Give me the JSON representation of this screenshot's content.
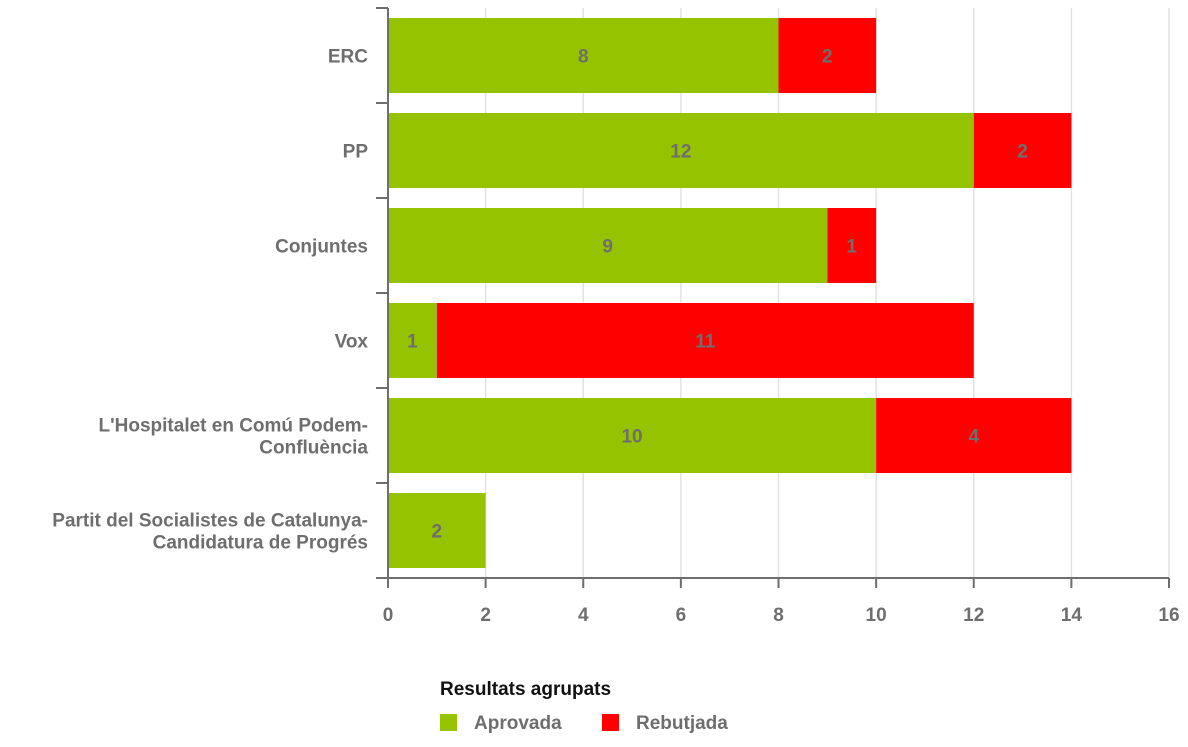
{
  "chart_data": {
    "type": "bar",
    "orientation": "horizontal",
    "stacked": true,
    "categories": [
      "ERC",
      "PP",
      "Conjuntes",
      "Vox",
      "L'Hospitalet en Comú Podem-Confluència",
      "Partit del Socialistes de Catalunya-Candidatura de Progrés"
    ],
    "series": [
      {
        "name": "Aprovada",
        "color": "#96c300",
        "values": [
          8,
          12,
          9,
          1,
          10,
          2
        ]
      },
      {
        "name": "Rebutjada",
        "color": "#ff0000",
        "values": [
          2,
          2,
          1,
          11,
          4,
          0
        ]
      }
    ],
    "xlim": [
      0,
      16
    ],
    "xticks": [
      0,
      2,
      4,
      6,
      8,
      10,
      12,
      14,
      16
    ],
    "grid": true,
    "legend": {
      "title": "Resultats agrupats",
      "position": "bottom"
    },
    "title": "",
    "xlabel": "",
    "ylabel": ""
  }
}
